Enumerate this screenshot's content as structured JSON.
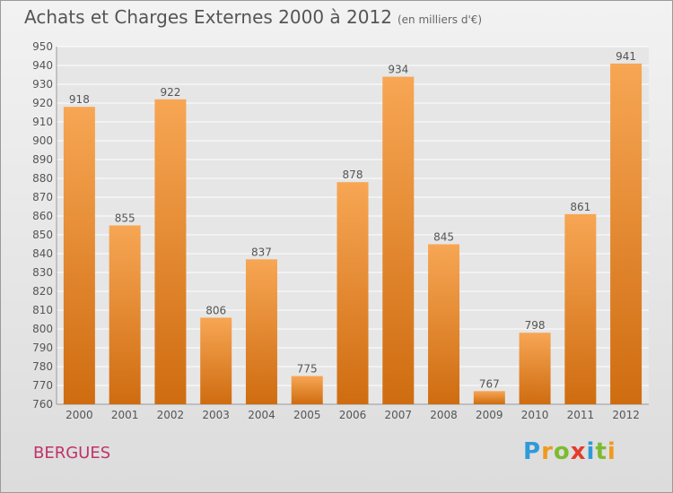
{
  "title": "Achats et Charges Externes 2000 à 2012",
  "subtitle": "(en milliers d'€)",
  "place": "BERGUES",
  "logo": "Proxiti",
  "colors": {
    "bar_top": "#f7a654",
    "bar_bottom": "#cf6c10",
    "text": "#555555",
    "place": "#c0336a"
  },
  "chart_data": {
    "type": "bar",
    "categories": [
      "2000",
      "2001",
      "2002",
      "2003",
      "2004",
      "2005",
      "2006",
      "2007",
      "2008",
      "2009",
      "2010",
      "2011",
      "2012"
    ],
    "values": [
      918,
      855,
      922,
      806,
      837,
      775,
      878,
      934,
      845,
      767,
      798,
      861,
      941
    ],
    "ylim": [
      760,
      950
    ],
    "yticks": [
      760,
      770,
      780,
      790,
      800,
      810,
      820,
      830,
      840,
      850,
      860,
      870,
      880,
      890,
      900,
      910,
      920,
      930,
      940,
      950
    ],
    "grid": true,
    "xlabel": "",
    "ylabel": ""
  }
}
